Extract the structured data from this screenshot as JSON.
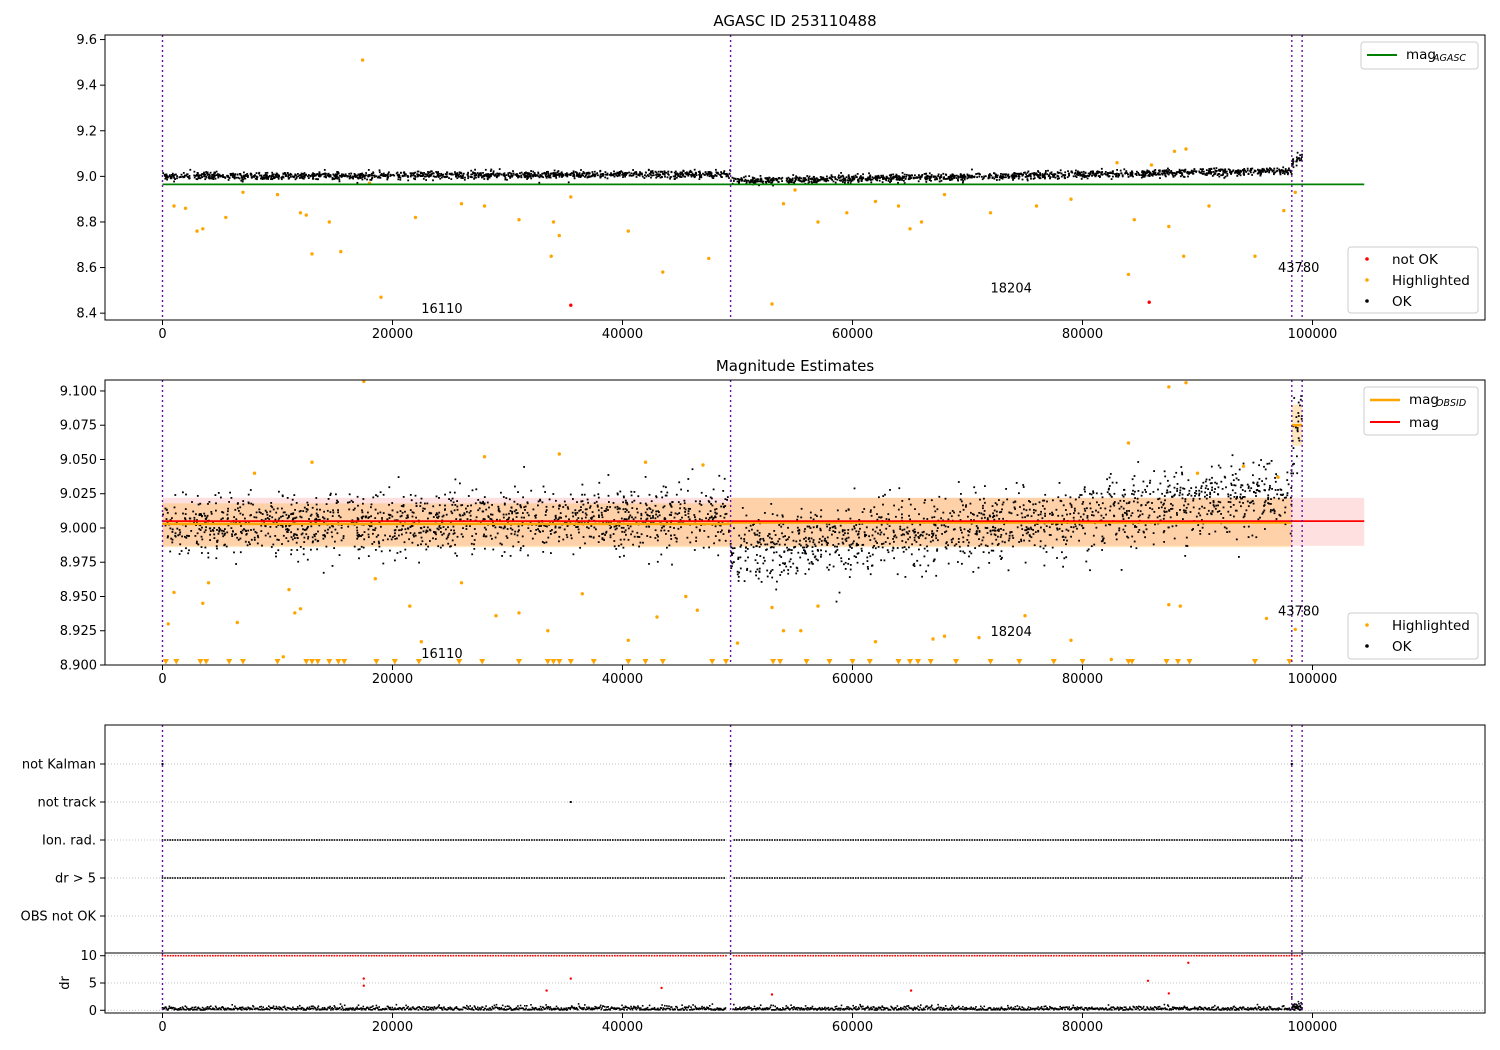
{
  "chart_data": [
    {
      "panel": "top",
      "type": "scatter",
      "title": "AGASC ID 253110488",
      "xlim": [
        -5000,
        115000
      ],
      "ylim": [
        8.37,
        9.62
      ],
      "x_ticks": [
        0,
        20000,
        40000,
        60000,
        80000,
        100000
      ],
      "x_tick_labels": [
        "0",
        "20000",
        "40000",
        "60000",
        "80000",
        "100000"
      ],
      "y_ticks": [
        8.4,
        8.6,
        8.8,
        9.0,
        9.2,
        9.4,
        9.6
      ],
      "y_tick_labels": [
        "8.4",
        "8.6",
        "8.8",
        "9.0",
        "9.2",
        "9.4",
        "9.6"
      ],
      "obs_boundaries": [
        0,
        49400,
        98200,
        99100
      ],
      "obs_labels": [
        {
          "text": "16110",
          "x": 22500,
          "y": 8.4
        },
        {
          "text": "18204",
          "x": 72000,
          "y": 8.49
        },
        {
          "text": "43780",
          "x": 97000,
          "y": 8.58
        }
      ],
      "mag_agasc": {
        "value": 8.965,
        "x_range": [
          0,
          104500
        ]
      },
      "ok_segments": [
        {
          "x0": 0,
          "x1": 49400,
          "y0": 9.0,
          "y1": 9.01,
          "spread": 0.018
        },
        {
          "x0": 49400,
          "x1": 98200,
          "y0": 8.98,
          "y1": 9.025,
          "spread": 0.018
        },
        {
          "x0": 98200,
          "x1": 99100,
          "y0": 9.05,
          "y1": 9.09,
          "spread": 0.025
        }
      ],
      "highlighted_points": [
        [
          17400,
          9.51
        ],
        [
          19000,
          8.47
        ],
        [
          43500,
          8.58
        ],
        [
          53000,
          8.44
        ],
        [
          84000,
          8.57
        ],
        [
          88800,
          8.65
        ],
        [
          95000,
          8.65
        ],
        [
          33800,
          8.65
        ],
        [
          13000,
          8.66
        ],
        [
          15500,
          8.67
        ],
        [
          3500,
          8.77
        ],
        [
          3000,
          8.76
        ],
        [
          12000,
          8.84
        ],
        [
          12500,
          8.83
        ],
        [
          14500,
          8.8
        ],
        [
          5500,
          8.82
        ],
        [
          22000,
          8.82
        ],
        [
          31000,
          8.81
        ],
        [
          34000,
          8.8
        ],
        [
          34500,
          8.74
        ],
        [
          35500,
          8.91
        ],
        [
          40500,
          8.76
        ],
        [
          47500,
          8.64
        ],
        [
          57000,
          8.8
        ],
        [
          59500,
          8.84
        ],
        [
          64000,
          8.87
        ],
        [
          65000,
          8.77
        ],
        [
          66000,
          8.8
        ],
        [
          72000,
          8.84
        ],
        [
          76000,
          8.87
        ],
        [
          79000,
          8.9
        ],
        [
          84500,
          8.81
        ],
        [
          87500,
          8.78
        ],
        [
          1000,
          8.87
        ],
        [
          2000,
          8.86
        ],
        [
          18000,
          8.97
        ],
        [
          26000,
          8.88
        ],
        [
          28000,
          8.87
        ],
        [
          7000,
          8.93
        ],
        [
          10000,
          8.92
        ],
        [
          88000,
          9.11
        ],
        [
          89000,
          9.12
        ],
        [
          86000,
          9.05
        ],
        [
          83000,
          9.06
        ],
        [
          91000,
          8.87
        ],
        [
          97500,
          8.85
        ],
        [
          98500,
          8.93
        ],
        [
          54000,
          8.88
        ],
        [
          55000,
          8.94
        ],
        [
          62000,
          8.89
        ],
        [
          68000,
          8.92
        ]
      ],
      "notok_points": [
        [
          35500,
          8.435
        ],
        [
          85800,
          8.448
        ]
      ],
      "legends": [
        {
          "position": "top-right",
          "entries": [
            {
              "label": "mag",
              "sub": "AGASC",
              "color": "#008000",
              "kind": "line"
            }
          ]
        },
        {
          "position": "lower-right",
          "entries": [
            {
              "label": "not OK",
              "color": "#ff0000",
              "kind": "dot"
            },
            {
              "label": "Highlighted",
              "color": "#ffa500",
              "kind": "dot"
            },
            {
              "label": "OK",
              "color": "#000000",
              "kind": "dot"
            }
          ]
        }
      ]
    },
    {
      "panel": "middle",
      "type": "scatter",
      "title": "Magnitude Estimates",
      "xlim": [
        -5000,
        115000
      ],
      "ylim": [
        8.9,
        9.108
      ],
      "x_ticks": [
        0,
        20000,
        40000,
        60000,
        80000,
        100000
      ],
      "x_tick_labels": [
        "0",
        "20000",
        "40000",
        "60000",
        "80000",
        "100000"
      ],
      "y_ticks": [
        8.9,
        8.925,
        8.95,
        8.975,
        9.0,
        9.025,
        9.05,
        9.075,
        9.1
      ],
      "y_tick_labels": [
        "8.900",
        "8.925",
        "8.950",
        "8.975",
        "9.000",
        "9.025",
        "9.050",
        "9.075",
        "9.100"
      ],
      "obs_boundaries": [
        0,
        49400,
        98200,
        99100
      ],
      "obs_labels": [
        {
          "text": "16110",
          "x": 22500,
          "y": 8.905
        },
        {
          "text": "18204",
          "x": 72000,
          "y": 8.921
        },
        {
          "text": "43780",
          "x": 97000,
          "y": 8.936
        }
      ],
      "mag": {
        "value": 9.005,
        "band": [
          8.987,
          9.022
        ],
        "x_range": [
          0,
          104500
        ]
      },
      "mag_obsid": [
        {
          "x_range": [
            0,
            49400
          ],
          "value": 9.003,
          "band": [
            8.986,
            9.018
          ]
        },
        {
          "x_range": [
            49400,
            98200
          ],
          "value": 9.004,
          "band": [
            8.986,
            9.022
          ]
        },
        {
          "x_range": [
            98200,
            99100
          ],
          "value": 9.075,
          "band": [
            9.06,
            9.09
          ]
        }
      ],
      "ok_segments": [
        {
          "x0": 0,
          "x1": 49400,
          "y0": 9.0,
          "y1": 9.008,
          "spread": 0.024
        },
        {
          "x0": 49400,
          "x1": 98200,
          "y0": 8.982,
          "y1": 9.024,
          "spread": 0.028
        },
        {
          "x0": 98200,
          "x1": 99100,
          "y0": 9.06,
          "y1": 9.09,
          "spread": 0.03
        }
      ],
      "highlighted_points": [
        [
          17500,
          9.107
        ],
        [
          87500,
          9.103
        ],
        [
          89000,
          9.106
        ],
        [
          500,
          8.93
        ],
        [
          1000,
          8.953
        ],
        [
          3500,
          8.945
        ],
        [
          4000,
          8.96
        ],
        [
          6500,
          8.931
        ],
        [
          10500,
          8.906
        ],
        [
          11000,
          8.955
        ],
        [
          11500,
          8.938
        ],
        [
          12000,
          8.941
        ],
        [
          18500,
          8.963
        ],
        [
          21500,
          8.943
        ],
        [
          22500,
          8.917
        ],
        [
          26000,
          8.96
        ],
        [
          29000,
          8.936
        ],
        [
          31000,
          8.938
        ],
        [
          33500,
          8.925
        ],
        [
          36500,
          8.952
        ],
        [
          40500,
          8.918
        ],
        [
          43000,
          8.935
        ],
        [
          45500,
          8.95
        ],
        [
          46500,
          8.94
        ],
        [
          50000,
          8.916
        ],
        [
          53000,
          8.942
        ],
        [
          54000,
          8.925
        ],
        [
          55500,
          8.925
        ],
        [
          57000,
          8.943
        ],
        [
          62000,
          8.917
        ],
        [
          67000,
          8.919
        ],
        [
          68000,
          8.921
        ],
        [
          71000,
          8.92
        ],
        [
          75000,
          8.936
        ],
        [
          79000,
          8.918
        ],
        [
          82500,
          8.904
        ],
        [
          87500,
          8.944
        ],
        [
          88500,
          8.943
        ],
        [
          96000,
          8.934
        ],
        [
          98500,
          8.926
        ],
        [
          84000,
          9.062
        ],
        [
          90000,
          9.04
        ],
        [
          94000,
          9.045
        ],
        [
          97000,
          9.037
        ],
        [
          28000,
          9.052
        ],
        [
          34500,
          9.054
        ],
        [
          42000,
          9.048
        ],
        [
          47000,
          9.046
        ],
        [
          13000,
          9.048
        ],
        [
          8000,
          9.04
        ]
      ],
      "clipped_points_x": [
        300,
        1200,
        3300,
        3800,
        5800,
        7000,
        10000,
        12500,
        13000,
        13500,
        14500,
        15300,
        15800,
        18600,
        20200,
        22300,
        25800,
        27800,
        31000,
        33500,
        34000,
        34500,
        35500,
        37500,
        40500,
        42000,
        43500,
        47800,
        49000,
        53100,
        53700,
        56000,
        58000,
        60000,
        61500,
        64000,
        65000,
        65700,
        66800,
        69000,
        72000,
        74500,
        77500,
        80000,
        84000,
        84300,
        87300,
        88300,
        89300,
        95000,
        98000
      ],
      "legend": {
        "position": "top-right",
        "entries": [
          {
            "label": "mag",
            "sub": "OBSID",
            "color": "#ffa500",
            "kind": "line"
          },
          {
            "label": "mag",
            "sub": "",
            "color": "#ff0000",
            "kind": "line"
          }
        ]
      },
      "legend2": {
        "position": "lower-right",
        "entries": [
          {
            "label": "Highlighted",
            "color": "#ffa500",
            "kind": "dot"
          },
          {
            "label": "OK",
            "color": "#000000",
            "kind": "dot"
          }
        ]
      }
    },
    {
      "panel": "flags",
      "type": "scatter",
      "xlim": [
        -5000,
        115000
      ],
      "categories": [
        "not Kalman",
        "not track",
        "Ion. rad.",
        "dr > 5",
        "OBS not OK"
      ],
      "points": {
        "not Kalman": [
          0,
          49400,
          98200
        ],
        "not track": [
          35500
        ],
        "Ion. rad.": {
          "range": [
            0,
            99100
          ],
          "gaps": [
            [
              49000,
              49600
            ]
          ]
        },
        "dr > 5": {
          "range": [
            0,
            99100
          ],
          "gaps": [
            [
              49000,
              49600
            ]
          ]
        },
        "OBS not OK": []
      },
      "obs_boundaries": [
        0,
        49400,
        98200,
        99100
      ]
    },
    {
      "panel": "dr",
      "type": "scatter",
      "ylabel": "dr",
      "xlim": [
        -5000,
        115000
      ],
      "ylim": [
        -0.5,
        10.5
      ],
      "x_ticks": [
        0,
        20000,
        40000,
        60000,
        80000,
        100000
      ],
      "x_tick_labels": [
        "0",
        "20000",
        "40000",
        "60000",
        "80000",
        "100000"
      ],
      "y_ticks": [
        0,
        5,
        10
      ],
      "y_tick_labels": [
        "0",
        "5",
        "10"
      ],
      "obs_boundaries": [
        0,
        49400,
        98200,
        99100
      ],
      "clipped_value": 10,
      "red_points": [
        [
          17500,
          5.8
        ],
        [
          17500,
          4.5
        ],
        [
          35500,
          5.8
        ],
        [
          33400,
          3.6
        ],
        [
          43400,
          4.1
        ],
        [
          53000,
          2.9
        ],
        [
          65100,
          3.6
        ],
        [
          85700,
          5.4
        ],
        [
          87500,
          3.1
        ],
        [
          89200,
          8.7
        ]
      ]
    }
  ]
}
